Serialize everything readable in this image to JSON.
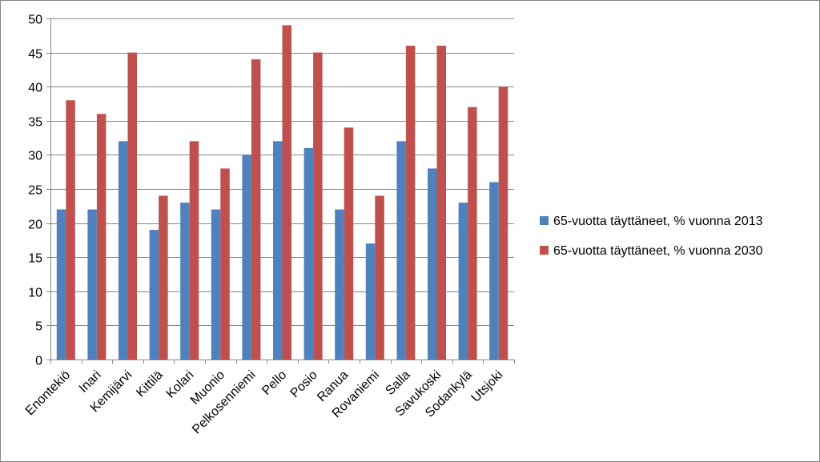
{
  "chart_data": {
    "type": "bar",
    "categories": [
      "Enontekiö",
      "Inari",
      "Kemijärvi",
      "Kittilä",
      "Kolari",
      "Muonio",
      "Pelkosenniemi",
      "Pello",
      "Posio",
      "Ranua",
      "Rovaniemi",
      "Salla",
      "Savukoski",
      "Sodankylä",
      "Utsjoki"
    ],
    "series": [
      {
        "name": "65-vuotta täyttäneet, % vuonna 2013",
        "color": "#4f81bd",
        "values": [
          22,
          22,
          32,
          19,
          23,
          22,
          30,
          32,
          31,
          22,
          17,
          32,
          28,
          23,
          26
        ]
      },
      {
        "name": "65-vuotta täyttäneet, % vuonna 2030",
        "color": "#c0504d",
        "values": [
          38,
          36,
          45,
          24,
          32,
          28,
          44,
          49,
          45,
          34,
          24,
          46,
          46,
          37,
          40
        ]
      }
    ],
    "ylim": [
      0,
      50
    ],
    "yticks": [
      0,
      5,
      10,
      15,
      20,
      25,
      30,
      35,
      40,
      45,
      50
    ],
    "grid": true,
    "legend_position": "right",
    "title": "",
    "xlabel": "",
    "ylabel": ""
  }
}
